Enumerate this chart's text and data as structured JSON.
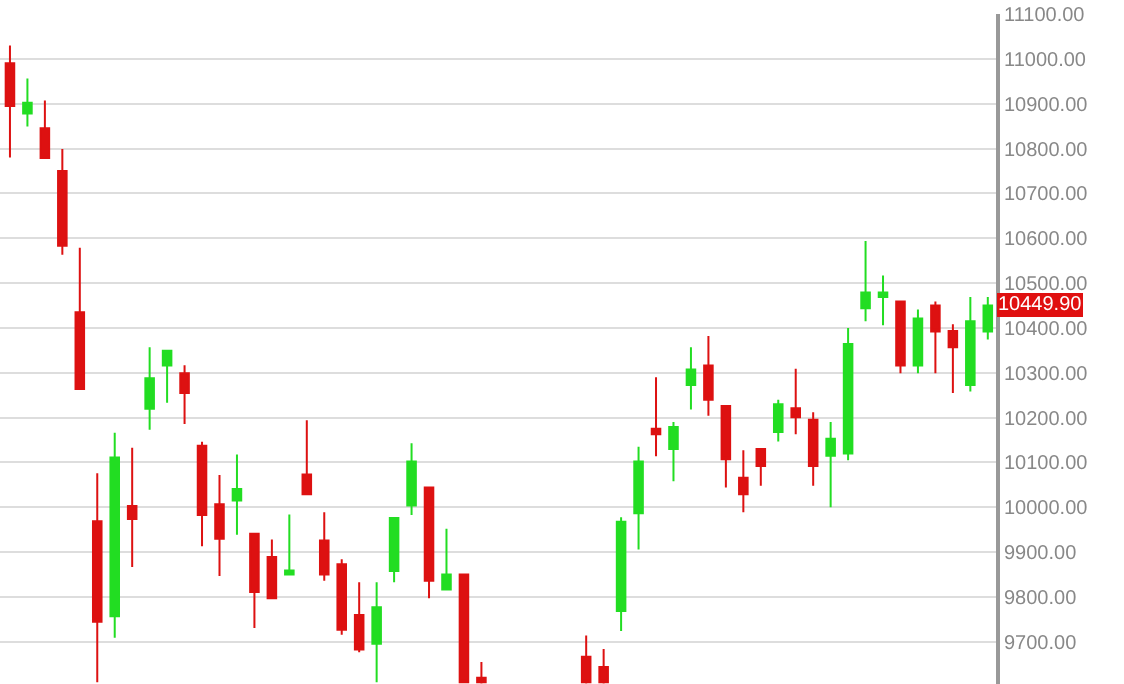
{
  "chart_data": {
    "type": "candlestick",
    "categories": [
      null,
      null,
      null,
      null,
      null,
      null,
      null,
      null,
      null,
      null,
      null,
      null,
      null,
      null,
      null,
      null,
      null,
      null,
      null,
      null,
      null,
      null,
      null,
      null,
      null,
      null,
      null,
      null,
      null,
      null,
      null,
      null,
      null,
      null,
      null,
      null,
      null,
      null,
      null,
      null,
      null,
      null,
      null,
      null,
      null,
      null,
      null,
      null,
      null,
      null,
      null,
      null,
      null,
      null,
      null,
      null,
      null
    ],
    "ohlc": [
      [
        10990,
        11030,
        10780,
        10895
      ],
      [
        10878,
        10956,
        10849,
        10902
      ],
      [
        10845,
        10907,
        10779,
        10779
      ],
      [
        10750,
        10799,
        10563,
        10583
      ],
      [
        10435,
        10579,
        10264,
        10264
      ],
      [
        9969,
        10076,
        9610,
        9745
      ],
      [
        9757,
        10166,
        9709,
        10111
      ],
      [
        10003,
        10133,
        9867,
        9974
      ],
      [
        10220,
        10357,
        10173,
        10288
      ],
      [
        10316,
        10349,
        10233,
        10349
      ],
      [
        10299,
        10317,
        10186,
        10255
      ],
      [
        10137,
        10146,
        9913,
        9983
      ],
      [
        10007,
        10072,
        9847,
        9930
      ],
      [
        10015,
        10118,
        9939,
        10041
      ],
      [
        9941,
        9941,
        9731,
        9811
      ],
      [
        9889,
        9928,
        9797,
        9797
      ],
      [
        9850,
        9984,
        9850,
        9859
      ],
      [
        10073,
        10194,
        10029,
        10029
      ],
      [
        9926,
        9989,
        9836,
        9850
      ],
      [
        9873,
        9884,
        9716,
        9727
      ],
      [
        9760,
        9833,
        9677,
        9683
      ],
      [
        9696,
        9833,
        9610,
        9777
      ],
      [
        9858,
        9976,
        9833,
        9976
      ],
      [
        10004,
        10143,
        9983,
        10102
      ],
      [
        10044,
        10044,
        9797,
        9836
      ],
      [
        9817,
        9952,
        9817,
        9850
      ],
      [
        9850,
        9850,
        9610,
        9610
      ],
      [
        9620,
        9655,
        9607,
        9610
      ],
      null,
      null,
      null,
      null,
      null,
      [
        9667,
        9714,
        9607,
        9610
      ],
      [
        9644,
        9684,
        9607,
        9610
      ],
      [
        9769,
        9978,
        9724,
        9968
      ],
      [
        9987,
        10135,
        9906,
        10102
      ],
      [
        10175,
        10290,
        10114,
        10163
      ],
      [
        10130,
        10190,
        10058,
        10179
      ],
      [
        10273,
        10357,
        10218,
        10307
      ],
      [
        10316,
        10382,
        10204,
        10240
      ],
      [
        10226,
        10226,
        10044,
        10107
      ],
      [
        10066,
        10127,
        9989,
        10029
      ],
      [
        10130,
        10130,
        10048,
        10092
      ],
      [
        10168,
        10240,
        10147,
        10230
      ],
      [
        10221,
        10309,
        10163,
        10201
      ],
      [
        10195,
        10212,
        10048,
        10092
      ],
      [
        10115,
        10190,
        10000,
        10153
      ],
      [
        10120,
        10400,
        10105,
        10364
      ],
      [
        10444,
        10594,
        10415,
        10479
      ],
      [
        10469,
        10517,
        10406,
        10479
      ],
      [
        10459,
        10459,
        10299,
        10316
      ],
      [
        10316,
        10441,
        10299,
        10421
      ],
      [
        10450,
        10459,
        10299,
        10392
      ],
      [
        10393,
        10408,
        10255,
        10357
      ],
      [
        10273,
        10469,
        10258,
        10415
      ],
      [
        10392,
        10469,
        10374,
        10449.9
      ]
    ],
    "colors": [
      "#dd1111",
      "#22dd22",
      "#dd1111",
      "#dd1111",
      "#dd1111",
      "#dd1111",
      "#22dd22",
      "#dd1111",
      "#22dd22",
      "#22dd22",
      "#dd1111",
      "#dd1111",
      "#dd1111",
      "#22dd22",
      "#dd1111",
      "#dd1111",
      "#22dd22",
      "#dd1111",
      "#dd1111",
      "#dd1111",
      "#dd1111",
      "#22dd22",
      "#22dd22",
      "#22dd22",
      "#dd1111",
      "#22dd22",
      "#dd1111",
      "#dd1111",
      null,
      null,
      null,
      null,
      null,
      "#dd1111",
      "#dd1111",
      "#22dd22",
      "#22dd22",
      "#dd1111",
      "#22dd22",
      "#22dd22",
      "#dd1111",
      "#dd1111",
      "#dd1111",
      "#dd1111",
      "#22dd22",
      "#dd1111",
      "#dd1111",
      "#22dd22",
      "#22dd22",
      "#22dd22",
      "#22dd22",
      "#dd1111",
      "#22dd22",
      "#dd1111",
      "#dd1111",
      "#22dd22",
      "#22dd22"
    ],
    "ylim": [
      9606,
      11100
    ],
    "yticks": [
      {
        "value": 9700,
        "label": "9700.00"
      },
      {
        "value": 9800,
        "label": "9800.00"
      },
      {
        "value": 9900,
        "label": "9900.00"
      },
      {
        "value": 10000,
        "label": "10000.00"
      },
      {
        "value": 10100,
        "label": "10100.00"
      },
      {
        "value": 10200,
        "label": "10200.00"
      },
      {
        "value": 10300,
        "label": "10300.00"
      },
      {
        "value": 10400,
        "label": "10400.00"
      },
      {
        "value": 10500,
        "label": "10500.00"
      },
      {
        "value": 10600,
        "label": "10600.00"
      },
      {
        "value": 10700,
        "label": "10700.00"
      },
      {
        "value": 10800,
        "label": "10800.00"
      },
      {
        "value": 10900,
        "label": "10900.00"
      },
      {
        "value": 11000,
        "label": "11000.00"
      },
      {
        "value": 11100,
        "label": "11100.00"
      }
    ],
    "annotations": [
      "10449.90"
    ],
    "grid": "y",
    "tick_labels": "y"
  }
}
